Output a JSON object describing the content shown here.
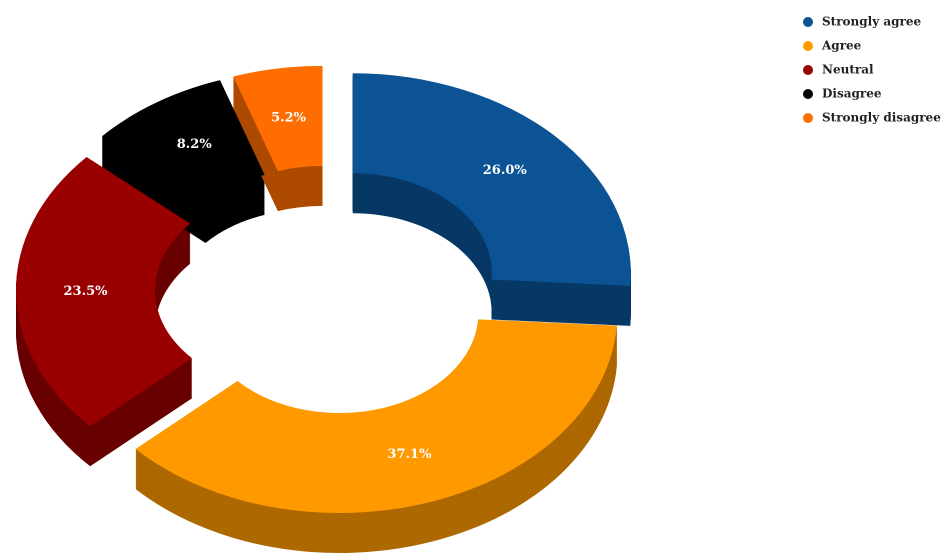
{
  "chart_data": {
    "type": "pie",
    "categories": [
      "Strongly agree",
      "Agree",
      "Neutral",
      "Disagree",
      "Strongly disagree"
    ],
    "values": [
      26.0,
      37.1,
      23.5,
      8.2,
      5.2
    ],
    "value_labels": [
      "26.0%",
      "37.1%",
      "23.5%",
      "8.2%",
      "5.2%"
    ],
    "colors": [
      "#0b5394",
      "#ff9900",
      "#990000",
      "#000000",
      "#ff6d01"
    ],
    "legend": "top-right"
  }
}
